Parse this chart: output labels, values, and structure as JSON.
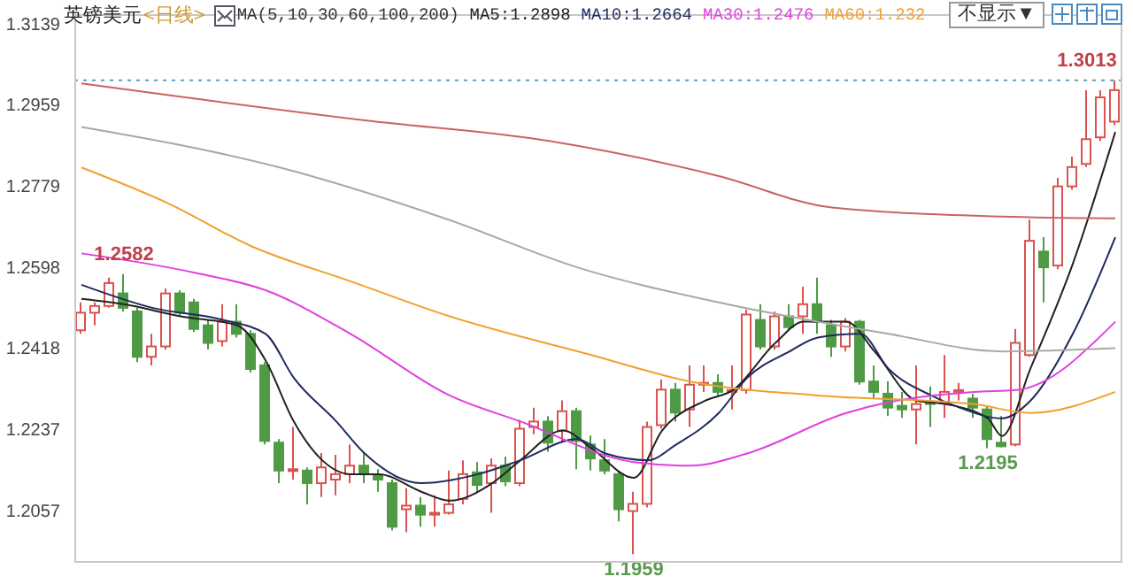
{
  "chart_data": {
    "type": "candlestick",
    "title": "英镑美元",
    "subtitle": "<日线>",
    "annotations": [
      "MA(5,10,30,60,100,200)",
      "不显示▼",
      {
        "text": "1.3013",
        "y": 1.3013
      },
      {
        "text": "1.2582",
        "y": 1.2582
      },
      {
        "text": "1.2195",
        "y": 1.2195
      },
      {
        "text": "1.1959",
        "y": 1.1959
      }
    ],
    "categories": [
      null,
      null,
      null,
      null,
      null,
      null,
      null,
      null,
      null,
      null,
      null,
      null,
      null,
      null,
      null,
      null,
      null,
      null,
      null,
      null,
      null,
      null,
      null,
      null,
      null,
      null,
      null,
      null,
      null,
      null,
      null,
      null,
      null,
      null,
      null,
      null,
      null,
      null,
      null,
      null,
      null,
      null,
      null,
      null,
      null,
      null,
      null,
      null,
      null,
      null,
      null,
      null,
      null,
      null,
      null,
      null,
      null,
      null,
      null,
      null,
      null,
      null,
      null,
      null,
      null,
      null,
      null,
      null,
      null,
      null,
      null,
      null,
      null,
      null
    ],
    "ohlc": [
      [
        1.2457,
        1.2519,
        1.2449,
        1.2496
      ],
      [
        1.2496,
        1.2519,
        1.2468,
        1.2511
      ],
      [
        1.2511,
        1.2574,
        1.2507,
        1.2562
      ],
      [
        1.2539,
        1.2582,
        1.2499,
        1.2507
      ],
      [
        1.2499,
        1.2507,
        1.2386,
        1.2398
      ],
      [
        1.2398,
        1.2449,
        1.2379,
        1.2421
      ],
      [
        1.2421,
        1.255,
        1.2414,
        1.2539
      ],
      [
        1.2539,
        1.2546,
        1.2488,
        1.2496
      ],
      [
        1.2519,
        1.2527,
        1.2453,
        1.246
      ],
      [
        1.2468,
        1.248,
        1.2414,
        1.2429
      ],
      [
        1.2433,
        1.2515,
        1.2421,
        1.2476
      ],
      [
        1.2476,
        1.2515,
        1.2441,
        1.2449
      ],
      [
        1.2449,
        1.2457,
        1.2363,
        1.2371
      ],
      [
        1.2379,
        1.2386,
        1.2203,
        1.2211
      ],
      [
        1.2207,
        1.2215,
        1.2117,
        1.2145
      ],
      [
        1.2145,
        1.2242,
        1.2125,
        1.2148
      ],
      [
        1.2145,
        1.2152,
        1.207,
        1.2117
      ],
      [
        1.2117,
        1.2184,
        1.2086,
        1.2152
      ],
      [
        1.2125,
        1.218,
        1.209,
        1.2137
      ],
      [
        1.2137,
        1.2203,
        1.2117,
        1.2156
      ],
      [
        1.2156,
        1.2184,
        1.2117,
        1.2137
      ],
      [
        1.2133,
        1.2148,
        1.2098,
        1.2125
      ],
      [
        1.2117,
        1.2125,
        1.2012,
        1.202
      ],
      [
        1.2059,
        1.2106,
        1.2008,
        1.2067
      ],
      [
        1.2067,
        1.2086,
        1.202,
        1.2047
      ],
      [
        1.2047,
        1.209,
        1.202,
        1.2051
      ],
      [
        1.2051,
        1.2145,
        1.2047,
        1.207
      ],
      [
        1.2082,
        1.2168,
        1.207,
        1.2137
      ],
      [
        1.2141,
        1.2164,
        1.2098,
        1.2113
      ],
      [
        1.2117,
        1.2172,
        1.2051,
        1.2156
      ],
      [
        1.2156,
        1.2176,
        1.211,
        1.2121
      ],
      [
        1.2117,
        1.2258,
        1.211,
        1.2238
      ],
      [
        1.2242,
        1.2285,
        1.2226,
        1.2254
      ],
      [
        1.2254,
        1.2266,
        1.2187,
        1.2207
      ],
      [
        1.2234,
        1.2301,
        1.2207,
        1.2277
      ],
      [
        1.2277,
        1.2285,
        1.2148,
        1.2211
      ],
      [
        1.2203,
        1.2223,
        1.2145,
        1.2172
      ],
      [
        1.2168,
        1.2215,
        1.2137,
        1.2145
      ],
      [
        1.2137,
        1.2145,
        1.2032,
        1.2059
      ],
      [
        1.2055,
        1.2098,
        1.1959,
        1.2071
      ],
      [
        1.2071,
        1.2254,
        1.2063,
        1.2242
      ],
      [
        1.2246,
        1.2348,
        1.2238,
        1.2325
      ],
      [
        1.2325,
        1.234,
        1.2254,
        1.2274
      ],
      [
        1.2281,
        1.2379,
        1.2242,
        1.2336
      ],
      [
        1.2336,
        1.2379,
        1.232,
        1.234
      ],
      [
        1.234,
        1.2359,
        1.2312,
        1.232
      ],
      [
        1.232,
        1.2379,
        1.2281,
        1.2324
      ],
      [
        1.2324,
        1.2503,
        1.2316,
        1.2492
      ],
      [
        1.248,
        1.2515,
        1.2414,
        1.2421
      ],
      [
        1.2421,
        1.2499,
        1.2414,
        1.2488
      ],
      [
        1.2488,
        1.2515,
        1.2457,
        1.2464
      ],
      [
        1.2488,
        1.2554,
        1.2449,
        1.2515
      ],
      [
        1.2515,
        1.2574,
        1.2449,
        1.2476
      ],
      [
        1.2468,
        1.248,
        1.2398,
        1.2421
      ],
      [
        1.2421,
        1.2484,
        1.241,
        1.2476
      ],
      [
        1.2476,
        1.248,
        1.2336,
        1.2343
      ],
      [
        1.2343,
        1.2379,
        1.2305,
        1.232
      ],
      [
        1.2316,
        1.2344,
        1.2266,
        1.2285
      ],
      [
        1.2289,
        1.232,
        1.2262,
        1.2281
      ],
      [
        1.2281,
        1.2379,
        1.2203,
        1.2293
      ],
      [
        1.2297,
        1.2332,
        1.2242,
        1.2293
      ],
      [
        1.2297,
        1.2402,
        1.2262,
        1.232
      ],
      [
        1.232,
        1.234,
        1.2301,
        1.2324
      ],
      [
        1.2305,
        1.2316,
        1.2262,
        1.2285
      ],
      [
        1.2281,
        1.2289,
        1.2195,
        1.2215
      ],
      [
        1.2207,
        1.2266,
        1.2197,
        1.2199
      ],
      [
        1.2203,
        1.246,
        1.2199,
        1.2429
      ],
      [
        1.2402,
        1.2703,
        1.2398,
        1.2656
      ],
      [
        1.2632,
        1.2664,
        1.2519,
        1.2597
      ],
      [
        1.2601,
        1.2796,
        1.2593,
        1.2777
      ],
      [
        1.2777,
        1.2843,
        1.277,
        1.282
      ],
      [
        1.2827,
        1.2991,
        1.282,
        1.2882
      ],
      [
        1.2886,
        1.2991,
        1.2878,
        1.2975
      ],
      [
        1.2921,
        1.3013,
        1.2913,
        1.2991
      ]
    ],
    "series": [
      {
        "type": "line",
        "name": "MA5:1.2898",
        "color": "#222222",
        "values": [
          1.2527,
          null,
          null,
          1.2515,
          null,
          null,
          null,
          1.2488,
          null,
          null,
          null,
          1.2468,
          null,
          1.239,
          null,
          1.2254,
          null,
          1.2168,
          null,
          1.2137,
          null,
          1.2137,
          null,
          null,
          1.2098,
          null,
          1.2078,
          null,
          null,
          1.2117,
          null,
          1.2168,
          null,
          null,
          1.2234,
          null,
          1.2195,
          null,
          null,
          1.2129,
          null,
          1.2234,
          null,
          null,
          1.23,
          null,
          1.2324,
          null,
          null,
          1.2429,
          null,
          1.2476,
          null,
          null,
          1.2476,
          null,
          1.241,
          null,
          null,
          1.23,
          null,
          1.2293,
          null,
          null,
          1.2261,
          1.2222,
          null,
          1.2371,
          null,
          null,
          1.2605,
          null,
          null,
          1.2898
        ]
      },
      {
        "type": "line",
        "name": "MA10:1.2664",
        "color": "#1f2a5c",
        "values": [
          1.2558,
          null,
          null,
          null,
          null,
          1.2507,
          null,
          null,
          null,
          null,
          1.248,
          null,
          null,
          1.2449,
          null,
          1.2351,
          null,
          null,
          1.2254,
          null,
          1.2183,
          null,
          null,
          null,
          1.2117,
          null,
          null,
          null,
          1.2137,
          null,
          null,
          1.2168,
          null,
          null,
          null,
          1.2215,
          null,
          1.2183,
          null,
          null,
          1.2168,
          null,
          1.2203,
          null,
          null,
          1.2273,
          null,
          1.2351,
          null,
          null,
          1.241,
          null,
          1.2441,
          null,
          null,
          1.2449,
          null,
          1.2371,
          null,
          null,
          1.2312,
          null,
          1.2285,
          null,
          null,
          1.2261,
          null,
          1.23,
          null,
          null,
          1.2449,
          null,
          null,
          1.2664
        ]
      },
      {
        "type": "line",
        "name": "MA30:1.2476",
        "color": "#e040e0",
        "values": [
          1.2628,
          null,
          null,
          null,
          null,
          null,
          null,
          null,
          1.2585,
          null,
          null,
          null,
          null,
          1.2546,
          null,
          null,
          null,
          null,
          null,
          1.2449,
          null,
          null,
          null,
          null,
          null,
          null,
          1.2312,
          null,
          null,
          null,
          null,
          1.2254,
          null,
          null,
          null,
          null,
          null,
          null,
          null,
          1.2164,
          null,
          null,
          null,
          1.2156,
          null,
          null,
          null,
          1.2183,
          null,
          null,
          null,
          null,
          null,
          null,
          1.2273,
          null,
          null,
          1.2297,
          null,
          null,
          null,
          null,
          null,
          1.232,
          null,
          null,
          1.2324,
          null,
          null,
          null,
          null,
          null,
          null,
          1.2476
        ]
      },
      {
        "type": "line",
        "name": "MA60:1.232",
        "color": "#f0a030",
        "values": [
          1.2819,
          null,
          null,
          null,
          null,
          null,
          1.2741,
          null,
          null,
          null,
          null,
          null,
          1.2644,
          null,
          null,
          null,
          null,
          null,
          null,
          1.2566,
          null,
          null,
          null,
          null,
          null,
          null,
          1.2488,
          null,
          null,
          null,
          null,
          null,
          null,
          null,
          null,
          null,
          1.2402,
          null,
          null,
          null,
          null,
          null,
          null,
          1.2343,
          null,
          null,
          null,
          null,
          null,
          null,
          null,
          null,
          1.2312,
          null,
          null,
          null,
          null,
          null,
          null,
          null,
          null,
          null,
          null,
          1.2293,
          null,
          null,
          null,
          1.2273,
          null,
          null,
          null,
          null,
          null,
          1.232
        ]
      },
      {
        "type": "line",
        "color": "#a8a8a8",
        "values": [
          1.2909,
          null,
          null,
          null,
          null,
          null,
          null,
          null,
          null,
          null,
          null,
          null,
          null,
          null,
          1.2819,
          null,
          null,
          null,
          null,
          null,
          null,
          null,
          null,
          null,
          null,
          null,
          1.2702,
          null,
          null,
          null,
          null,
          null,
          null,
          null,
          null,
          1.2597,
          null,
          null,
          null,
          null,
          null,
          null,
          null,
          null,
          null,
          1.2519,
          null,
          null,
          null,
          null,
          null,
          null,
          null,
          null,
          null,
          null,
          null,
          1.2449,
          null,
          null,
          null,
          null,
          null,
          null,
          null,
          1.241,
          null,
          null,
          null,
          null,
          null,
          null,
          null,
          1.2417
        ]
      },
      {
        "type": "line",
        "color": "#c86464",
        "values": [
          1.3006,
          null,
          null,
          null,
          null,
          null,
          null,
          null,
          null,
          null,
          null,
          null,
          null,
          null,
          null,
          null,
          null,
          null,
          null,
          null,
          1.2924,
          null,
          null,
          null,
          null,
          null,
          null,
          null,
          null,
          null,
          null,
          null,
          null,
          1.2878,
          null,
          null,
          null,
          null,
          null,
          null,
          null,
          null,
          null,
          null,
          null,
          1.28,
          null,
          null,
          null,
          null,
          null,
          null,
          null,
          1.273,
          null,
          null,
          null,
          null,
          null,
          null,
          null,
          null,
          null,
          null,
          null,
          1.271,
          null,
          null,
          null,
          null,
          null,
          null,
          null,
          1.2706
        ]
      }
    ],
    "ylim": [
      1.194,
      1.316
    ],
    "yticks": [
      1.3139,
      1.2959,
      1.2779,
      1.2598,
      1.2418,
      1.2237,
      1.2057
    ],
    "ref_lines": [
      {
        "axis": "y",
        "value": 1.3013,
        "color": "#5aa0c8",
        "line_style": "dotted"
      }
    ],
    "legend": "top",
    "tick_labels": "y"
  }
}
